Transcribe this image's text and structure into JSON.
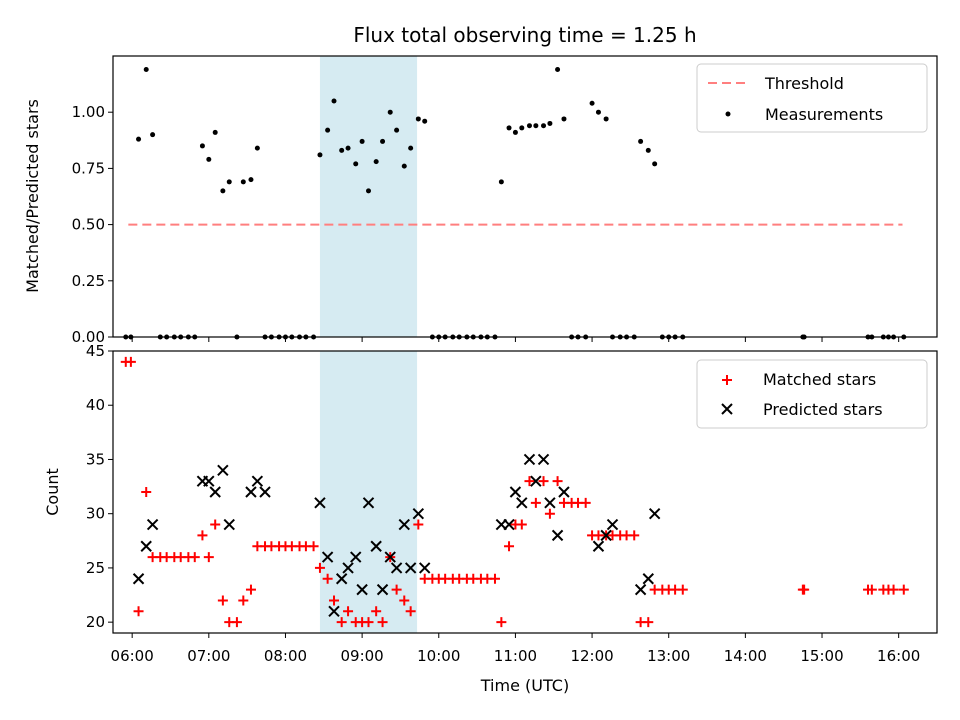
{
  "chart_data": [
    {
      "type": "scatter",
      "title": "Flux total observing time = 1.25 h",
      "xlabel": "",
      "ylabel": "Matched/Predicted stars",
      "xlim": [
        "05:45",
        "16:30"
      ],
      "ylim": [
        0,
        1.25
      ],
      "yticks": [
        "0.00",
        "0.25",
        "0.50",
        "0.75",
        "1.00"
      ],
      "grid": false,
      "legend_position": "top-right",
      "highlight_span": [
        "08:27",
        "09:43"
      ],
      "threshold": {
        "name": "Threshold",
        "value": 0.5,
        "x": [
          "05:57",
          "16:03"
        ],
        "color": "#ff7f7f"
      },
      "series": [
        {
          "name": "Measurements",
          "color": "#000000",
          "points": [
            [
              "05:55",
              0
            ],
            [
              "05:59",
              0
            ],
            [
              "06:05",
              0.88
            ],
            [
              "06:11",
              1.19
            ],
            [
              "06:16",
              0.9
            ],
            [
              "06:22",
              0
            ],
            [
              "06:27",
              0
            ],
            [
              "06:33",
              0
            ],
            [
              "06:38",
              0
            ],
            [
              "06:44",
              0
            ],
            [
              "06:49",
              0
            ],
            [
              "06:55",
              0.85
            ],
            [
              "07:00",
              0.79
            ],
            [
              "07:05",
              0.91
            ],
            [
              "07:11",
              0.65
            ],
            [
              "07:16",
              0.69
            ],
            [
              "07:22",
              0
            ],
            [
              "07:27",
              0.69
            ],
            [
              "07:33",
              0.7
            ],
            [
              "07:38",
              0.84
            ],
            [
              "07:44",
              0
            ],
            [
              "07:49",
              0
            ],
            [
              "07:55",
              0
            ],
            [
              "08:00",
              0
            ],
            [
              "08:05",
              0
            ],
            [
              "08:11",
              0
            ],
            [
              "08:16",
              0
            ],
            [
              "08:22",
              0
            ],
            [
              "08:27",
              0.81
            ],
            [
              "08:33",
              0.92
            ],
            [
              "08:38",
              1.05
            ],
            [
              "08:44",
              0.83
            ],
            [
              "08:49",
              0.84
            ],
            [
              "08:55",
              0.77
            ],
            [
              "09:00",
              0.87
            ],
            [
              "09:05",
              0.65
            ],
            [
              "09:11",
              0.78
            ],
            [
              "09:16",
              0.87
            ],
            [
              "09:22",
              1.0
            ],
            [
              "09:27",
              0.92
            ],
            [
              "09:33",
              0.76
            ],
            [
              "09:38",
              0.84
            ],
            [
              "09:44",
              0.97
            ],
            [
              "09:49",
              0.96
            ],
            [
              "09:55",
              0
            ],
            [
              "10:00",
              0
            ],
            [
              "10:05",
              0
            ],
            [
              "10:11",
              0
            ],
            [
              "10:16",
              0
            ],
            [
              "10:22",
              0
            ],
            [
              "10:27",
              0
            ],
            [
              "10:33",
              0
            ],
            [
              "10:38",
              0
            ],
            [
              "10:44",
              0
            ],
            [
              "10:49",
              0.69
            ],
            [
              "10:55",
              0.93
            ],
            [
              "11:00",
              0.91
            ],
            [
              "11:05",
              0.93
            ],
            [
              "11:11",
              0.94
            ],
            [
              "11:16",
              0.94
            ],
            [
              "11:22",
              0.94
            ],
            [
              "11:27",
              0.95
            ],
            [
              "11:33",
              1.19
            ],
            [
              "11:38",
              0.97
            ],
            [
              "11:44",
              0
            ],
            [
              "11:49",
              0
            ],
            [
              "11:55",
              0
            ],
            [
              "12:00",
              1.04
            ],
            [
              "12:05",
              1.0
            ],
            [
              "12:11",
              0.97
            ],
            [
              "12:16",
              0
            ],
            [
              "12:22",
              0
            ],
            [
              "12:27",
              0
            ],
            [
              "12:33",
              0
            ],
            [
              "12:38",
              0.87
            ],
            [
              "12:44",
              0.83
            ],
            [
              "12:49",
              0.77
            ],
            [
              "12:55",
              0
            ],
            [
              "13:00",
              0
            ],
            [
              "13:05",
              0
            ],
            [
              "13:11",
              0
            ],
            [
              "14:45",
              0
            ],
            [
              "14:46",
              0
            ],
            [
              "15:36",
              0
            ],
            [
              "15:39",
              0
            ],
            [
              "15:48",
              0
            ],
            [
              "15:52",
              0
            ],
            [
              "15:56",
              0
            ],
            [
              "16:04",
              0
            ]
          ]
        }
      ]
    },
    {
      "type": "scatter",
      "title": "",
      "xlabel": "Time (UTC)",
      "ylabel": "Count",
      "xlim": [
        "05:45",
        "16:30"
      ],
      "ylim": [
        19,
        45
      ],
      "yticks": [
        "20",
        "25",
        "30",
        "35",
        "40",
        "45"
      ],
      "xticks": [
        "06:00",
        "07:00",
        "08:00",
        "09:00",
        "10:00",
        "11:00",
        "12:00",
        "13:00",
        "14:00",
        "15:00",
        "16:00"
      ],
      "grid": false,
      "legend_position": "top-right",
      "highlight_span": [
        "08:27",
        "09:43"
      ],
      "series": [
        {
          "name": "Matched stars",
          "color": "#ff0000",
          "marker": "plus",
          "points": [
            [
              "05:55",
              44
            ],
            [
              "05:59",
              44
            ],
            [
              "06:05",
              21
            ],
            [
              "06:11",
              32
            ],
            [
              "06:16",
              26
            ],
            [
              "06:22",
              26
            ],
            [
              "06:27",
              26
            ],
            [
              "06:33",
              26
            ],
            [
              "06:38",
              26
            ],
            [
              "06:44",
              26
            ],
            [
              "06:49",
              26
            ],
            [
              "06:55",
              28
            ],
            [
              "07:00",
              26
            ],
            [
              "07:05",
              29
            ],
            [
              "07:11",
              22
            ],
            [
              "07:16",
              20
            ],
            [
              "07:22",
              20
            ],
            [
              "07:27",
              22
            ],
            [
              "07:33",
              23
            ],
            [
              "07:38",
              27
            ],
            [
              "07:44",
              27
            ],
            [
              "07:49",
              27
            ],
            [
              "07:55",
              27
            ],
            [
              "08:00",
              27
            ],
            [
              "08:05",
              27
            ],
            [
              "08:11",
              27
            ],
            [
              "08:16",
              27
            ],
            [
              "08:22",
              27
            ],
            [
              "08:27",
              25
            ],
            [
              "08:33",
              24
            ],
            [
              "08:38",
              22
            ],
            [
              "08:44",
              20
            ],
            [
              "08:49",
              21
            ],
            [
              "08:55",
              20
            ],
            [
              "09:00",
              20
            ],
            [
              "09:05",
              20
            ],
            [
              "09:11",
              21
            ],
            [
              "09:16",
              20
            ],
            [
              "09:22",
              26
            ],
            [
              "09:27",
              23
            ],
            [
              "09:33",
              22
            ],
            [
              "09:38",
              21
            ],
            [
              "09:44",
              29
            ],
            [
              "09:49",
              24
            ],
            [
              "09:55",
              24
            ],
            [
              "10:00",
              24
            ],
            [
              "10:05",
              24
            ],
            [
              "10:11",
              24
            ],
            [
              "10:16",
              24
            ],
            [
              "10:22",
              24
            ],
            [
              "10:27",
              24
            ],
            [
              "10:33",
              24
            ],
            [
              "10:38",
              24
            ],
            [
              "10:44",
              24
            ],
            [
              "10:49",
              20
            ],
            [
              "10:55",
              27
            ],
            [
              "11:00",
              29
            ],
            [
              "11:05",
              29
            ],
            [
              "11:11",
              33
            ],
            [
              "11:16",
              31
            ],
            [
              "11:22",
              33
            ],
            [
              "11:27",
              30
            ],
            [
              "11:33",
              33
            ],
            [
              "11:38",
              31
            ],
            [
              "11:44",
              31
            ],
            [
              "11:49",
              31
            ],
            [
              "11:55",
              31
            ],
            [
              "12:00",
              28
            ],
            [
              "12:05",
              28
            ],
            [
              "12:11",
              28
            ],
            [
              "12:16",
              28
            ],
            [
              "12:22",
              28
            ],
            [
              "12:27",
              28
            ],
            [
              "12:33",
              28
            ],
            [
              "12:38",
              20
            ],
            [
              "12:44",
              20
            ],
            [
              "12:49",
              23
            ],
            [
              "12:55",
              23
            ],
            [
              "13:00",
              23
            ],
            [
              "13:05",
              23
            ],
            [
              "13:11",
              23
            ],
            [
              "14:45",
              23
            ],
            [
              "14:46",
              23
            ],
            [
              "15:36",
              23
            ],
            [
              "15:39",
              23
            ],
            [
              "15:48",
              23
            ],
            [
              "15:52",
              23
            ],
            [
              "15:56",
              23
            ],
            [
              "16:04",
              23
            ]
          ]
        },
        {
          "name": "Predicted stars",
          "color": "#000000",
          "marker": "x",
          "points": [
            [
              "06:05",
              24
            ],
            [
              "06:11",
              27
            ],
            [
              "06:16",
              29
            ],
            [
              "06:55",
              33
            ],
            [
              "07:00",
              33
            ],
            [
              "07:05",
              32
            ],
            [
              "07:11",
              34
            ],
            [
              "07:16",
              29
            ],
            [
              "07:33",
              32
            ],
            [
              "07:38",
              33
            ],
            [
              "07:44",
              32
            ],
            [
              "08:27",
              31
            ],
            [
              "08:33",
              26
            ],
            [
              "08:38",
              21
            ],
            [
              "08:44",
              24
            ],
            [
              "08:49",
              25
            ],
            [
              "08:55",
              26
            ],
            [
              "09:00",
              23
            ],
            [
              "09:05",
              31
            ],
            [
              "09:11",
              27
            ],
            [
              "09:16",
              23
            ],
            [
              "09:22",
              26
            ],
            [
              "09:27",
              25
            ],
            [
              "09:33",
              29
            ],
            [
              "09:38",
              25
            ],
            [
              "09:44",
              30
            ],
            [
              "09:49",
              25
            ],
            [
              "10:49",
              29
            ],
            [
              "10:55",
              29
            ],
            [
              "11:00",
              32
            ],
            [
              "11:05",
              31
            ],
            [
              "11:11",
              35
            ],
            [
              "11:16",
              33
            ],
            [
              "11:22",
              35
            ],
            [
              "11:27",
              31
            ],
            [
              "11:33",
              28
            ],
            [
              "11:38",
              32
            ],
            [
              "12:05",
              27
            ],
            [
              "12:11",
              28
            ],
            [
              "12:16",
              29
            ],
            [
              "12:38",
              23
            ],
            [
              "12:44",
              24
            ],
            [
              "12:49",
              30
            ]
          ]
        }
      ]
    }
  ]
}
